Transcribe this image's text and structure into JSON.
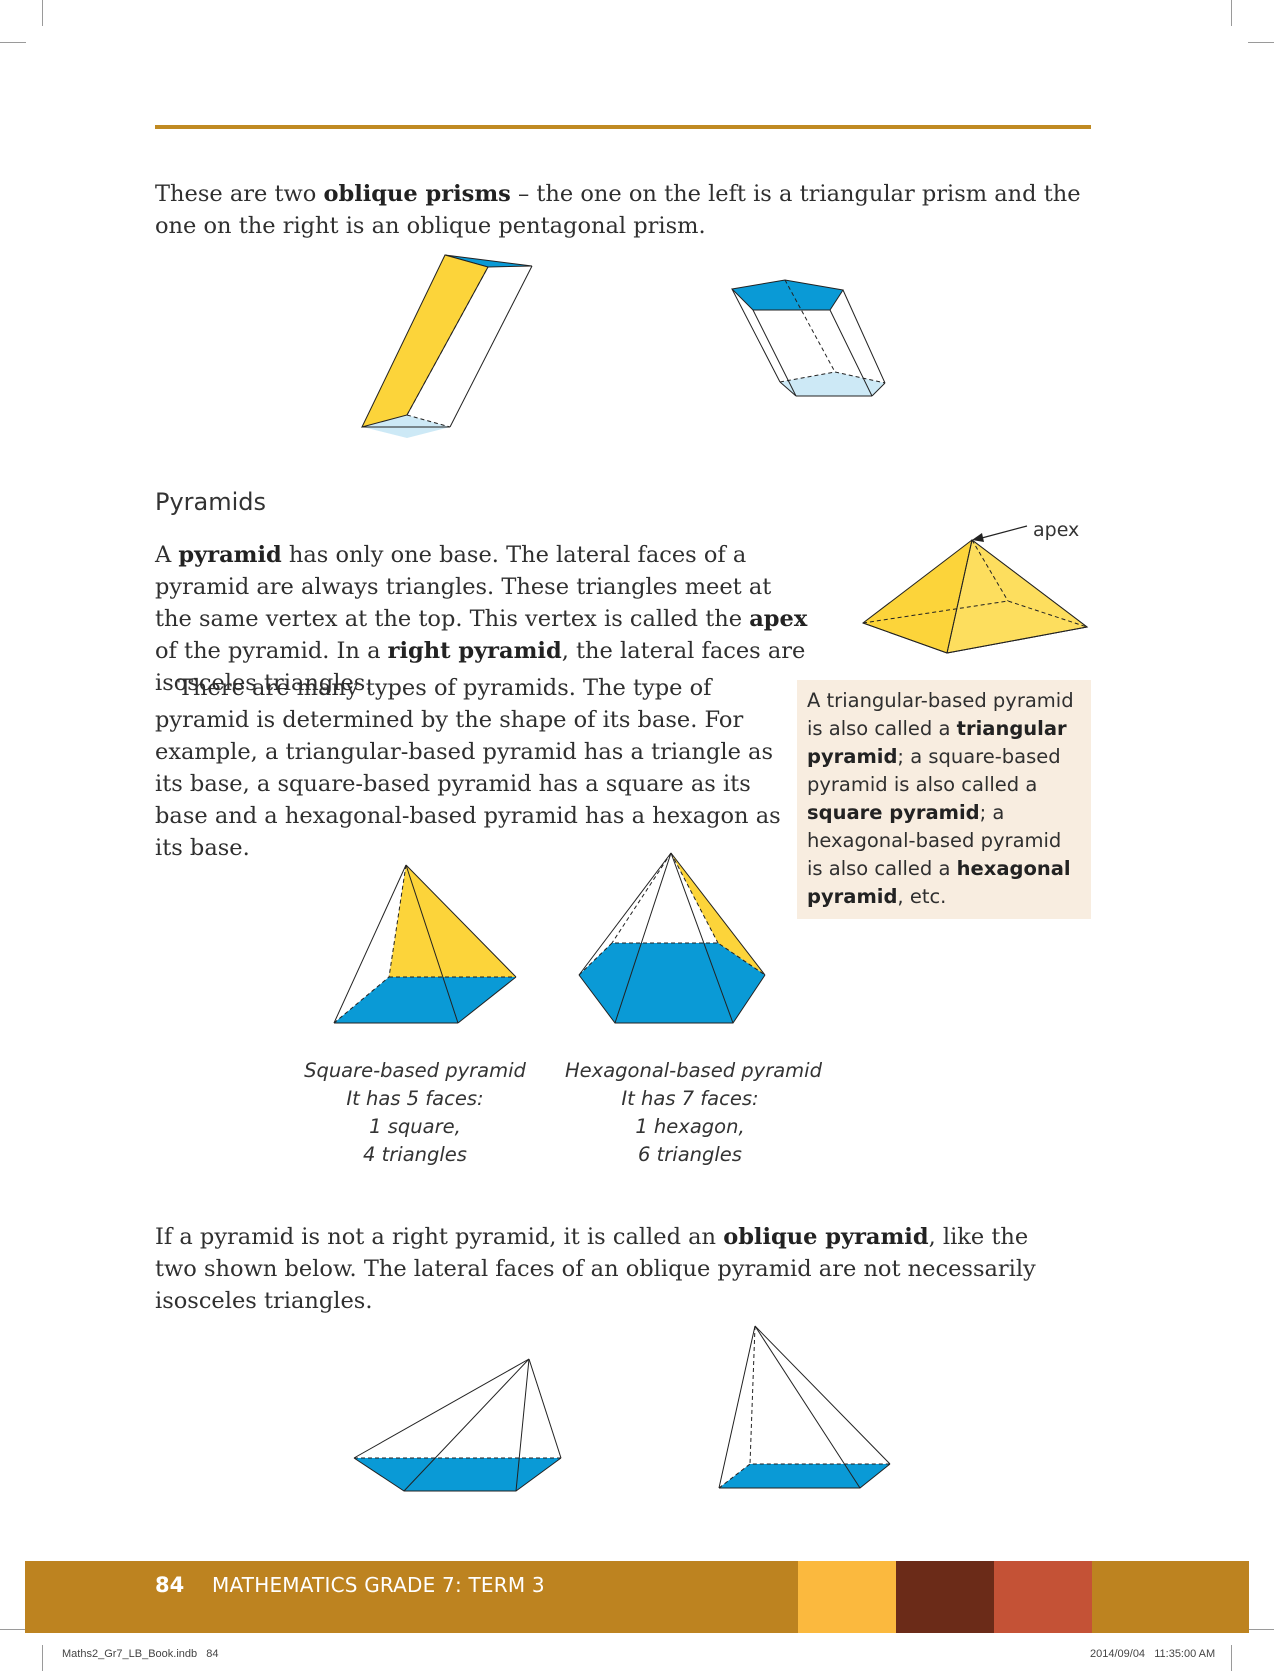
{
  "colors": {
    "rule": "#c08a22",
    "yellow": "#fcd43a",
    "blue": "#0a9ad6",
    "light_blue": "#cde9f6",
    "sidebar_bg": "#f8ede0",
    "footer_main": "#bd8320",
    "footer_light": "#fbb93e",
    "footer_dark": "#6b2b18",
    "footer_red": "#c45236"
  },
  "intro": {
    "pre": "These are two ",
    "bold": "oblique prisms",
    "post": " – the one on the left is a triangular prism and the one on the right is an oblique pentagonal prism."
  },
  "pyramids": {
    "heading": "Pyramids",
    "p1": {
      "t1": "A ",
      "b1": "pyramid",
      "t2": " has only one base. The lateral faces of a pyramid are always triangles. These triangles meet at the same vertex at the top. This vertex is called the ",
      "b2": "apex",
      "t3": " of the pyramid. In a ",
      "b3": "right pyramid",
      "t4": ", the lateral faces are isosceles triangles."
    },
    "p2": "There are many types of pyramids. The type of pyramid is determined by the shape of its base. For example, a triangular-based pyramid has a triangle as its base, a square-based pyramid has a square as its base and a hexagonal-based pyramid has a hexagon as its base.",
    "apex_label": "apex"
  },
  "sidebar": {
    "t1": "A triangular-based pyramid is also called a ",
    "b1": "triangular pyramid",
    "t2": "; a square-based pyramid is also called a ",
    "b2": "square pyramid",
    "t3": "; a hexagonal-based pyramid is also called a ",
    "b3": "hexagonal pyramid",
    "t4": ", etc."
  },
  "captions": {
    "square": [
      "Square-based pyramid",
      "It has 5 faces:",
      "1 square,",
      "4 triangles"
    ],
    "hexagonal": [
      "Hexagonal-based pyramid",
      "It has 7 faces:",
      "1 hexagon,",
      "6 triangles"
    ]
  },
  "oblique": {
    "t1": "If a pyramid is not a right pyramid, it is called an ",
    "b1": "oblique pyramid",
    "t2": ", like the two shown below. The lateral faces of an oblique pyramid are not necessarily isosceles triangles."
  },
  "footer": {
    "page_number": "84",
    "title": "MATHEMATICS GRADE 7: TERM 3"
  },
  "slug": {
    "file": "Maths2_Gr7_LB_Book.indb   84",
    "timestamp": "2014/09/04   11:35:00 AM"
  }
}
